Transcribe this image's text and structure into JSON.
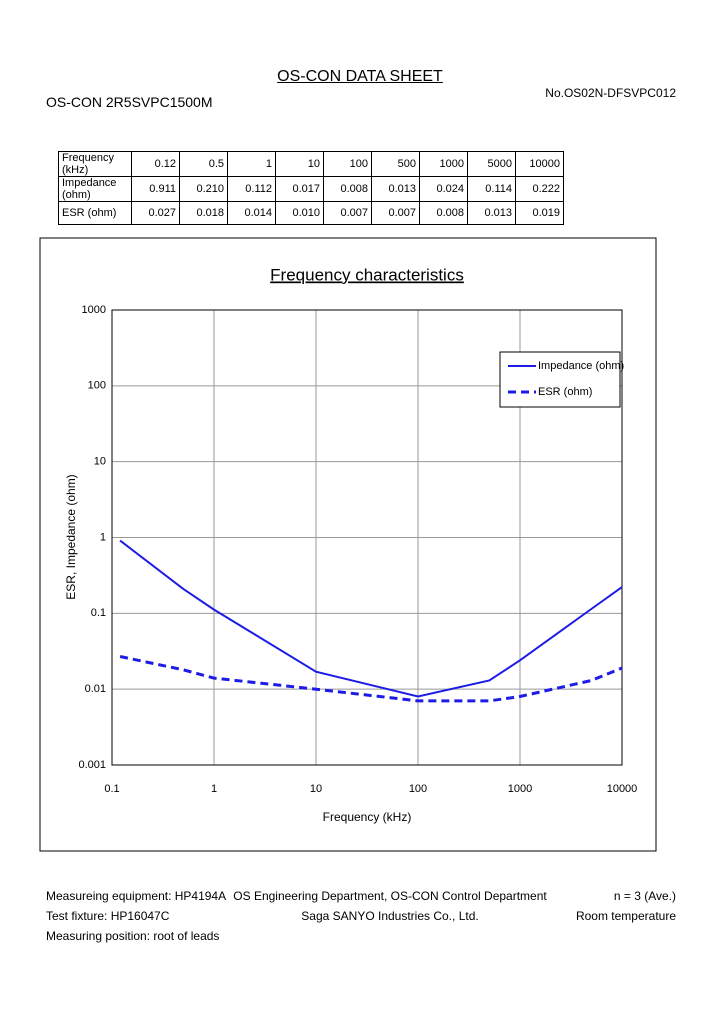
{
  "header": {
    "title": "OS-CON DATA SHEET",
    "part": "OS-CON 2R5SVPC1500M",
    "doc_no": "No.OS02N-DFSVPC012"
  },
  "table": {
    "rows": [
      [
        "Frequency (kHz)",
        "0.12",
        "0.5",
        "1",
        "10",
        "100",
        "500",
        "1000",
        "5000",
        "10000"
      ],
      [
        "Impedance (ohm)",
        "0.911",
        "0.210",
        "0.112",
        "0.017",
        "0.008",
        "0.013",
        "0.024",
        "0.114",
        "0.222"
      ],
      [
        "ESR (ohm)",
        "0.027",
        "0.018",
        "0.014",
        "0.010",
        "0.007",
        "0.007",
        "0.008",
        "0.013",
        "0.019"
      ]
    ]
  },
  "chart_data": {
    "type": "line",
    "title": "Frequency characteristics",
    "x_label": "Frequency (kHz)",
    "y_label": "ESR, Impedance (ohm)",
    "x": [
      0.12,
      0.5,
      1,
      10,
      100,
      500,
      1000,
      5000,
      10000
    ],
    "series": [
      {
        "name": "Impedance (ohm)",
        "color": "#1c1ce6",
        "dash": false,
        "values": [
          0.911,
          0.21,
          0.112,
          0.017,
          0.008,
          0.013,
          0.024,
          0.114,
          0.222
        ]
      },
      {
        "name": "ESR (ohm)",
        "color": "#1c1ce6",
        "dash": true,
        "values": [
          0.027,
          0.018,
          0.014,
          0.01,
          0.007,
          0.007,
          0.008,
          0.013,
          0.019
        ]
      }
    ],
    "x_log": true,
    "y_log": true,
    "xlim": [
      0.1,
      10000
    ],
    "ylim": [
      0.001,
      1000
    ],
    "xticks": [
      0.1,
      1,
      10,
      100,
      1000,
      10000
    ],
    "yticks": [
      0.001,
      0.01,
      0.1,
      1,
      10,
      100,
      1000
    ],
    "grid": true,
    "legend": "upper right"
  },
  "footer": {
    "left": [
      "Measureing equipment: HP4194A",
      "Test fixture: HP16047C",
      "Measuring position: root of leads"
    ],
    "center": [
      "OS Engineering Department, OS-CON Control Department",
      "Saga SANYO Industries Co., Ltd."
    ],
    "right": [
      "n = 3 (Ave.)",
      "Room temperature"
    ]
  }
}
